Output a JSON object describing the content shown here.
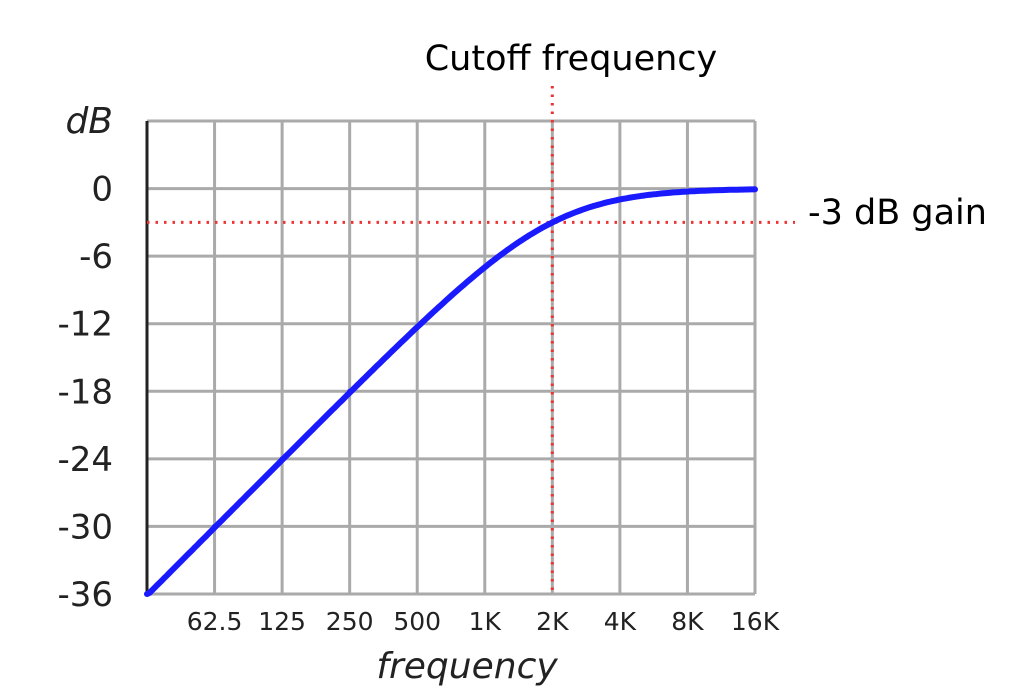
{
  "chart_data": {
    "type": "line",
    "title": "",
    "xlabel": "frequency",
    "ylabel": "dB",
    "x_scale": "log2",
    "categories": [
      "",
      "62.5",
      "125",
      "250",
      "500",
      "1K",
      "2K",
      "4K",
      "8K",
      "16K"
    ],
    "x": [
      31.25,
      62.5,
      125,
      250,
      500,
      1000,
      2000,
      4000,
      8000,
      16000
    ],
    "xlim": [
      31.25,
      16000
    ],
    "ylim": [
      -36,
      6
    ],
    "y_ticks": [
      "dB",
      "0",
      "-6",
      "-12",
      "-18",
      "-24",
      "-30",
      "-36"
    ],
    "grid": true,
    "series": [
      {
        "values": [
          -36,
          -30,
          -24,
          -18,
          -12.3,
          -7,
          -3,
          -0.97,
          -0.26,
          -0.07
        ],
        "color": "#1a1aff"
      }
    ],
    "annotations": {
      "cutoff_label": "Cutoff frequency",
      "cutoff_x": 2000,
      "gain_label": "-3 dB gain",
      "gain_y": -3,
      "color": "#ee3333"
    },
    "colors": {
      "grid": "#aaaaaa",
      "axis": "#222222",
      "curve": "#1a1aff",
      "annotation": "#ee3333"
    }
  }
}
